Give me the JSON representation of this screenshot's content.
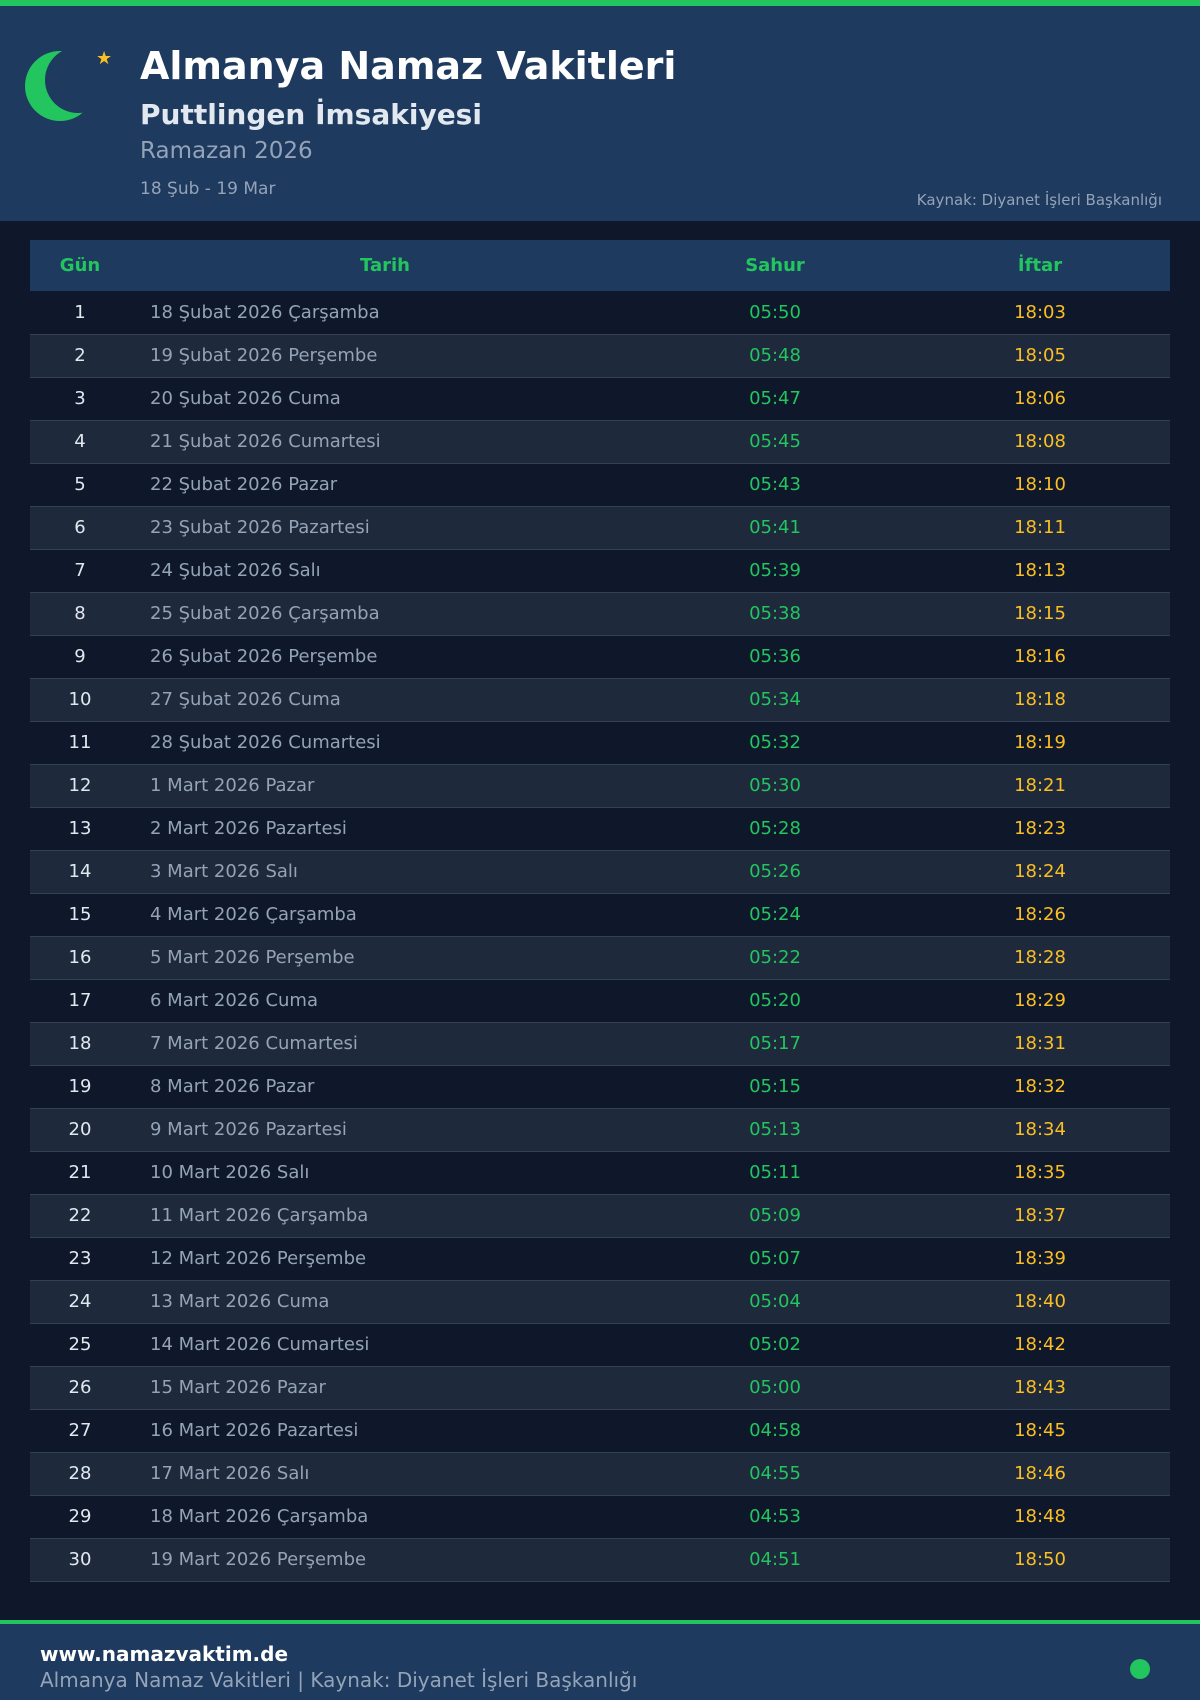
{
  "header": {
    "title": "Almanya Namaz Vakitleri",
    "subtitle": "Puttlingen İmsakiyesi",
    "ramadan": "Ramazan 2026",
    "range": "18 Şub - 19 Mar",
    "source": "Kaynak: Diyanet İşleri Başkanlığı"
  },
  "colors": {
    "accent": "#22c55e",
    "iftar": "#fbbf24",
    "header_bg": "#1e3a5f",
    "page_bg": "#0f172a"
  },
  "table": {
    "headers": [
      "Gün",
      "Tarih",
      "Sahur",
      "İftar"
    ],
    "rows": [
      [
        "1",
        "18 Şubat 2026 Çarşamba",
        "05:50",
        "18:03"
      ],
      [
        "2",
        "19 Şubat 2026 Perşembe",
        "05:48",
        "18:05"
      ],
      [
        "3",
        "20 Şubat 2026 Cuma",
        "05:47",
        "18:06"
      ],
      [
        "4",
        "21 Şubat 2026 Cumartesi",
        "05:45",
        "18:08"
      ],
      [
        "5",
        "22 Şubat 2026 Pazar",
        "05:43",
        "18:10"
      ],
      [
        "6",
        "23 Şubat 2026 Pazartesi",
        "05:41",
        "18:11"
      ],
      [
        "7",
        "24 Şubat 2026 Salı",
        "05:39",
        "18:13"
      ],
      [
        "8",
        "25 Şubat 2026 Çarşamba",
        "05:38",
        "18:15"
      ],
      [
        "9",
        "26 Şubat 2026 Perşembe",
        "05:36",
        "18:16"
      ],
      [
        "10",
        "27 Şubat 2026 Cuma",
        "05:34",
        "18:18"
      ],
      [
        "11",
        "28 Şubat 2026 Cumartesi",
        "05:32",
        "18:19"
      ],
      [
        "12",
        "1 Mart 2026 Pazar",
        "05:30",
        "18:21"
      ],
      [
        "13",
        "2 Mart 2026 Pazartesi",
        "05:28",
        "18:23"
      ],
      [
        "14",
        "3 Mart 2026 Salı",
        "05:26",
        "18:24"
      ],
      [
        "15",
        "4 Mart 2026 Çarşamba",
        "05:24",
        "18:26"
      ],
      [
        "16",
        "5 Mart 2026 Perşembe",
        "05:22",
        "18:28"
      ],
      [
        "17",
        "6 Mart 2026 Cuma",
        "05:20",
        "18:29"
      ],
      [
        "18",
        "7 Mart 2026 Cumartesi",
        "05:17",
        "18:31"
      ],
      [
        "19",
        "8 Mart 2026 Pazar",
        "05:15",
        "18:32"
      ],
      [
        "20",
        "9 Mart 2026 Pazartesi",
        "05:13",
        "18:34"
      ],
      [
        "21",
        "10 Mart 2026 Salı",
        "05:11",
        "18:35"
      ],
      [
        "22",
        "11 Mart 2026 Çarşamba",
        "05:09",
        "18:37"
      ],
      [
        "23",
        "12 Mart 2026 Perşembe",
        "05:07",
        "18:39"
      ],
      [
        "24",
        "13 Mart 2026 Cuma",
        "05:04",
        "18:40"
      ],
      [
        "25",
        "14 Mart 2026 Cumartesi",
        "05:02",
        "18:42"
      ],
      [
        "26",
        "15 Mart 2026 Pazar",
        "05:00",
        "18:43"
      ],
      [
        "27",
        "16 Mart 2026 Pazartesi",
        "04:58",
        "18:45"
      ],
      [
        "28",
        "17 Mart 2026 Salı",
        "04:55",
        "18:46"
      ],
      [
        "29",
        "18 Mart 2026 Çarşamba",
        "04:53",
        "18:48"
      ],
      [
        "30",
        "19 Mart 2026 Perşembe",
        "04:51",
        "18:50"
      ]
    ]
  },
  "footer": {
    "url": "www.namazvaktim.de",
    "text": "Almanya Namaz Vakitleri | Kaynak: Diyanet İşleri Başkanlığı"
  }
}
